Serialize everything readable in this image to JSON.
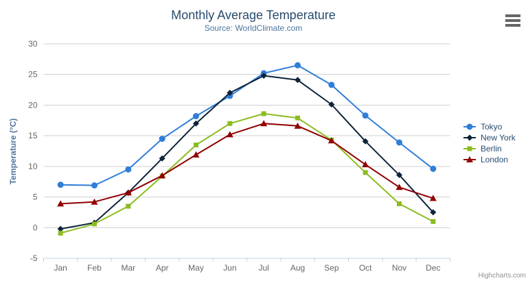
{
  "chart_data": {
    "type": "line",
    "title": "Monthly Average Temperature",
    "subtitle": "Source: WorldClimate.com",
    "categories": [
      "Jan",
      "Feb",
      "Mar",
      "Apr",
      "May",
      "Jun",
      "Jul",
      "Aug",
      "Sep",
      "Oct",
      "Nov",
      "Dec"
    ],
    "xlabel": "",
    "ylabel": "Temperature (°C)",
    "ylim": [
      -5,
      30
    ],
    "yticks": [
      -5,
      0,
      5,
      10,
      15,
      20,
      25,
      30
    ],
    "grid": true,
    "legend_position": "right",
    "axis_label_color": "#666666",
    "grid_color": "#d0d0d0",
    "axis_line_color": "#c0d0e0",
    "series": [
      {
        "name": "Tokyo",
        "color": "#2f7ed8",
        "marker": "circle",
        "values": [
          7.0,
          6.9,
          9.5,
          14.5,
          18.2,
          21.5,
          25.2,
          26.5,
          23.3,
          18.3,
          13.9,
          9.6
        ]
      },
      {
        "name": "New York",
        "color": "#0d233a",
        "marker": "diamond",
        "values": [
          -0.2,
          0.8,
          5.7,
          11.3,
          17.0,
          22.0,
          24.8,
          24.1,
          20.1,
          14.1,
          8.6,
          2.5
        ]
      },
      {
        "name": "Berlin",
        "color": "#8bbc21",
        "marker": "square",
        "values": [
          -0.9,
          0.6,
          3.5,
          8.4,
          13.5,
          17.0,
          18.6,
          17.9,
          14.3,
          9.0,
          3.9,
          1.0
        ]
      },
      {
        "name": "London",
        "color": "#910000",
        "marker": "triangle",
        "values": [
          3.9,
          4.2,
          5.7,
          8.5,
          11.9,
          15.2,
          17.0,
          16.6,
          14.2,
          10.3,
          6.6,
          4.8
        ]
      }
    ]
  },
  "context_menu": {
    "icon": "hamburger-icon"
  },
  "credits": {
    "label": "Highcharts.com"
  }
}
